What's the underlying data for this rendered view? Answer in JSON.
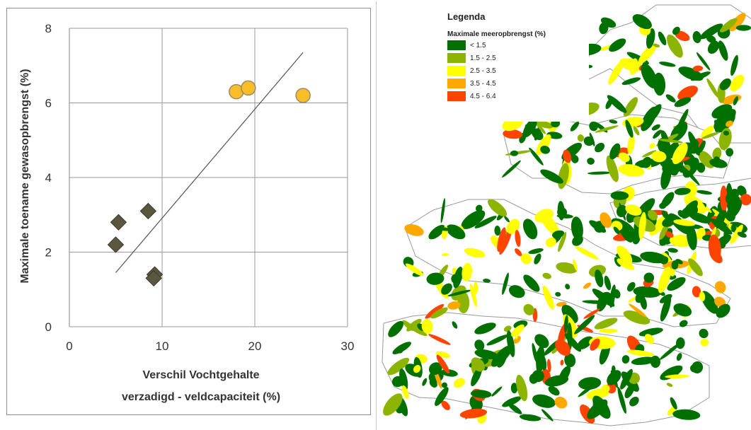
{
  "chart_data": {
    "type": "scatter",
    "xlabel": [
      "Verschil Vochtgehalte",
      "verzadigd - veldcapaciteit  (%)"
    ],
    "ylabel": "Maximale toename gewasopbrengst (%)",
    "xlim": [
      0,
      30
    ],
    "ylim": [
      0,
      8
    ],
    "xticks": [
      "0",
      "10",
      "20",
      "30"
    ],
    "yticks": [
      "0",
      "2",
      "4",
      "6",
      "8"
    ],
    "grid": true,
    "series": [
      {
        "marker": "circle",
        "color": "#f7be2a",
        "points": [
          {
            "x": 18.0,
            "y": 6.3
          },
          {
            "x": 19.3,
            "y": 6.4
          },
          {
            "x": 25.2,
            "y": 6.2
          }
        ]
      },
      {
        "marker": "diamond",
        "color": "#5a5741",
        "points": [
          {
            "x": 5.3,
            "y": 2.8
          },
          {
            "x": 5.0,
            "y": 2.2
          },
          {
            "x": 8.5,
            "y": 3.1
          },
          {
            "x": 9.2,
            "y": 1.4
          },
          {
            "x": 9.1,
            "y": 1.3
          }
        ]
      }
    ],
    "trendline": {
      "x": [
        5.0,
        25.2
      ],
      "y": [
        1.45,
        7.35
      ]
    }
  },
  "map": {
    "legend": {
      "title": "Legenda",
      "subtitle": "Maximale meeropbrengst (%)",
      "items": [
        {
          "label": "< 1.5",
          "color": "#007000"
        },
        {
          "label": "1.5 - 2.5",
          "color": "#8db400"
        },
        {
          "label": "2.5 - 3.5",
          "color": "#ffff00"
        },
        {
          "label": "3.5 - 4.5",
          "color": "#ffa800"
        },
        {
          "label": "4.5 - 6.4",
          "color": "#ff4400"
        }
      ]
    }
  }
}
